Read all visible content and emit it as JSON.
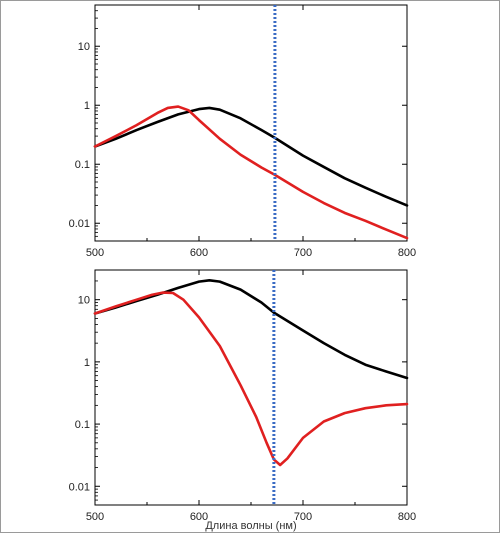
{
  "chart_data": [
    {
      "type": "line",
      "title": "",
      "xlabel": "",
      "ylabel": "",
      "xlim": [
        500,
        800
      ],
      "ylim": [
        0.005,
        50
      ],
      "y_scale": "log",
      "x_ticks": [
        500,
        600,
        700,
        800
      ],
      "x_tick_labels": [
        "500",
        "600",
        "700",
        "800"
      ],
      "y_ticks": [
        0.01,
        0.1,
        1,
        10
      ],
      "y_tick_labels": [
        "0.01",
        "0.1",
        "1",
        "10"
      ],
      "grid": false,
      "legend": "none",
      "marker_line": {
        "x": 673,
        "style": "dotted",
        "color": "#3a6bc4"
      },
      "series": [
        {
          "color": "#000000",
          "x": [
            500,
            520,
            540,
            560,
            580,
            600,
            610,
            620,
            640,
            660,
            673,
            700,
            720,
            740,
            760,
            780,
            800
          ],
          "y": [
            0.2,
            0.27,
            0.38,
            0.52,
            0.7,
            0.86,
            0.9,
            0.84,
            0.6,
            0.38,
            0.28,
            0.14,
            0.09,
            0.058,
            0.04,
            0.028,
            0.02
          ]
        },
        {
          "color": "#e02020",
          "x": [
            500,
            520,
            540,
            560,
            570,
            580,
            590,
            600,
            620,
            640,
            660,
            673,
            700,
            720,
            740,
            760,
            780,
            800
          ],
          "y": [
            0.2,
            0.3,
            0.46,
            0.74,
            0.9,
            0.95,
            0.82,
            0.56,
            0.27,
            0.145,
            0.088,
            0.066,
            0.034,
            0.022,
            0.015,
            0.011,
            0.0078,
            0.0056
          ]
        }
      ]
    },
    {
      "type": "line",
      "title": "",
      "xlabel": "Длина волны (нм)",
      "ylabel": "",
      "xlim": [
        500,
        800
      ],
      "ylim": [
        0.005,
        30
      ],
      "y_scale": "log",
      "x_ticks": [
        500,
        600,
        700,
        800
      ],
      "x_tick_labels": [
        "500",
        "600",
        "700",
        "800"
      ],
      "y_ticks": [
        0.01,
        0.1,
        1,
        10
      ],
      "y_tick_labels": [
        "0.01",
        "0.1",
        "1",
        "10"
      ],
      "grid": false,
      "legend": "none",
      "marker_line": {
        "x": 672,
        "style": "dotted",
        "color": "#3a6bc4"
      },
      "series": [
        {
          "color": "#000000",
          "x": [
            500,
            520,
            540,
            560,
            580,
            600,
            610,
            620,
            640,
            660,
            672,
            700,
            720,
            740,
            760,
            780,
            800
          ],
          "y": [
            6,
            7.5,
            9.5,
            12,
            15.5,
            19.5,
            20.5,
            19.5,
            14.5,
            9,
            6.2,
            3.2,
            2,
            1.3,
            0.9,
            0.7,
            0.55
          ]
        },
        {
          "color": "#e02020",
          "x": [
            500,
            520,
            540,
            555,
            565,
            575,
            585,
            600,
            620,
            640,
            655,
            665,
            672,
            678,
            685,
            700,
            720,
            740,
            760,
            780,
            800
          ],
          "y": [
            6,
            7.8,
            10,
            12,
            13,
            12.8,
            10,
            5.2,
            1.8,
            0.42,
            0.13,
            0.05,
            0.027,
            0.022,
            0.028,
            0.06,
            0.11,
            0.15,
            0.18,
            0.2,
            0.21
          ]
        }
      ]
    }
  ]
}
